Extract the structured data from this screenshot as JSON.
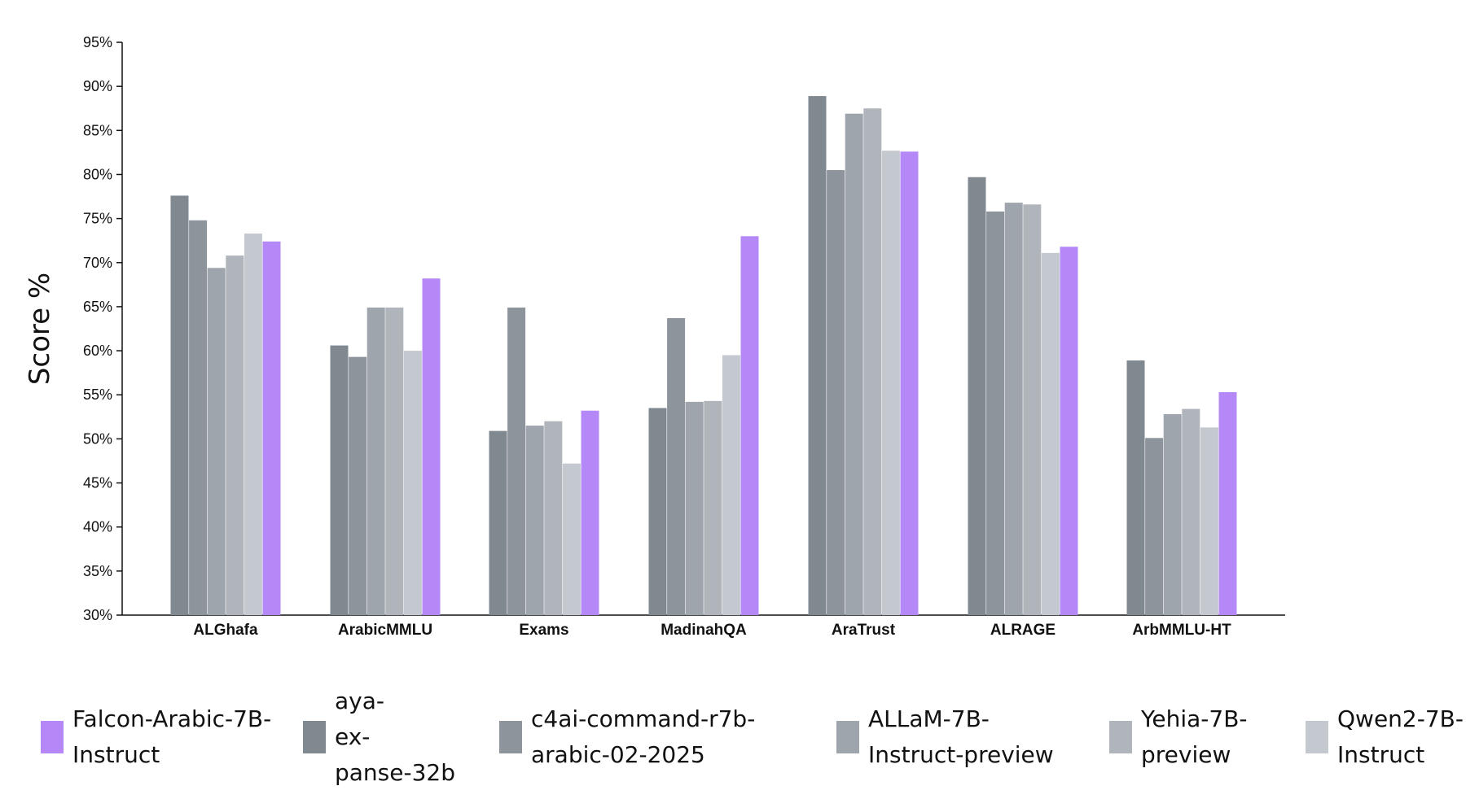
{
  "chart_data": {
    "type": "bar",
    "ylabel": "Score %",
    "ylim": [
      30,
      95
    ],
    "yticks": [
      "30%",
      "35%",
      "40%",
      "45%",
      "50%",
      "55%",
      "60%",
      "65%",
      "70%",
      "75%",
      "80%",
      "85%",
      "90%",
      "95%"
    ],
    "categories": [
      "ALGhafa",
      "ArabicMMLU",
      "Exams",
      "MadinahQA",
      "AraTrust",
      "ALRAGE",
      "ArbMMLU-HT"
    ],
    "series": [
      {
        "name": "aya-\nex-\npanse-32b",
        "color": "#808890",
        "values": [
          77.6,
          60.6,
          50.9,
          53.5,
          88.9,
          79.7,
          58.9
        ]
      },
      {
        "name": "c4ai-command-r7b-\narabic-02-2025",
        "color": "#8d949c",
        "values": [
          74.8,
          59.3,
          64.9,
          63.7,
          80.5,
          75.8,
          50.1
        ]
      },
      {
        "name": "ALLaM-7B-\nInstruct-preview",
        "color": "#9ea5ad",
        "values": [
          69.4,
          64.9,
          51.5,
          54.2,
          86.9,
          76.8,
          52.8
        ]
      },
      {
        "name": "Yehia-7B-\npreview",
        "color": "#b0b5bc",
        "values": [
          70.8,
          64.9,
          52.0,
          54.3,
          87.5,
          76.6,
          53.4
        ]
      },
      {
        "name": "Qwen2-7B-\nInstruct",
        "color": "#c4c9cf",
        "values": [
          73.3,
          60.0,
          47.2,
          59.5,
          82.7,
          71.1,
          51.3
        ]
      },
      {
        "name": "Falcon-Arabic-7B-\nInstruct",
        "color": "#b588f7",
        "values": [
          72.4,
          68.2,
          53.2,
          73.0,
          82.6,
          71.8,
          55.3
        ]
      }
    ],
    "legend_order": [
      5,
      0,
      1,
      2,
      3,
      4
    ],
    "legend_position": "bottom",
    "grid": false
  }
}
